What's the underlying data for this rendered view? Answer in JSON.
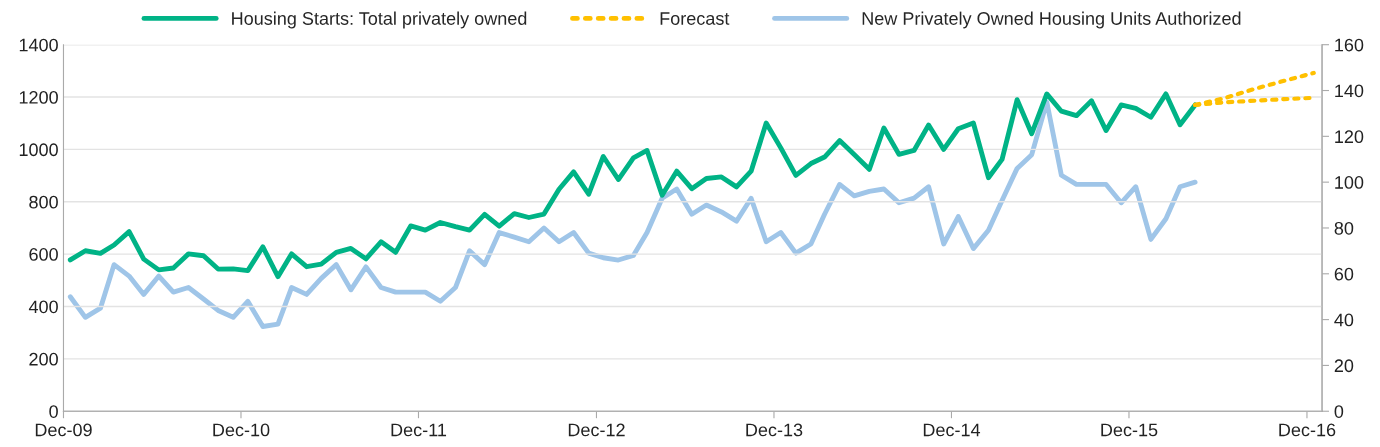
{
  "chart_data": {
    "type": "line",
    "legend": "top",
    "grid": "y",
    "marker": "none",
    "x": [
      "2009-12-15",
      "2010-01-15",
      "2010-02-15",
      "2010-03-15",
      "2010-04-15",
      "2010-05-15",
      "2010-06-15",
      "2010-07-15",
      "2010-08-15",
      "2010-09-15",
      "2010-10-15",
      "2010-11-15",
      "2010-12-15",
      "2011-01-15",
      "2011-02-15",
      "2011-03-15",
      "2011-04-15",
      "2011-05-15",
      "2011-06-15",
      "2011-07-15",
      "2011-08-15",
      "2011-09-15",
      "2011-10-15",
      "2011-11-15",
      "2011-12-15",
      "2012-01-15",
      "2012-02-15",
      "2012-03-15",
      "2012-04-15",
      "2012-05-15",
      "2012-06-15",
      "2012-07-15",
      "2012-08-15",
      "2012-09-15",
      "2012-10-15",
      "2012-11-15",
      "2012-12-15",
      "2013-01-15",
      "2013-02-15",
      "2013-03-15",
      "2013-04-15",
      "2013-05-15",
      "2013-06-15",
      "2013-07-15",
      "2013-08-15",
      "2013-09-15",
      "2013-10-15",
      "2013-11-15",
      "2013-12-15",
      "2014-01-15",
      "2014-02-15",
      "2014-03-15",
      "2014-04-15",
      "2014-05-15",
      "2014-06-15",
      "2014-07-15",
      "2014-08-15",
      "2014-09-15",
      "2014-10-15",
      "2014-11-15",
      "2014-12-15",
      "2015-01-15",
      "2015-02-15",
      "2015-03-15",
      "2015-04-15",
      "2015-05-15",
      "2015-06-15",
      "2015-07-15",
      "2015-08-15",
      "2015-09-15",
      "2015-10-15",
      "2015-11-15",
      "2015-12-15",
      "2016-01-15",
      "2016-02-15",
      "2016-03-15",
      "2016-04-15"
    ],
    "series": [
      {
        "name": "Housing Starts: Total privately owned",
        "color": "#00b386",
        "line_style": "solid",
        "values": [
          578,
          613,
          603,
          635,
          686,
          581,
          540,
          547,
          601,
          594,
          543,
          544,
          537,
          628,
          514,
          601,
          552,
          562,
          607,
          622,
          582,
          647,
          607,
          708,
          692,
          721,
          705,
          692,
          752,
          707,
          755,
          740,
          753,
          848,
          914,
          829,
          973,
          885,
          968,
          996,
          825,
          917,
          850,
          889,
          895,
          857,
          917,
          1101,
          1006,
          901,
          946,
          971,
          1034,
          981,
          924,
          1082,
          981,
          996,
          1093,
          1000,
          1079,
          1101,
          892,
          962,
          1190,
          1060,
          1212,
          1146,
          1129,
          1186,
          1072,
          1170,
          1157,
          1123,
          1212,
          1094,
          1170
        ]
      },
      {
        "name": "Forecast",
        "color": "#ffc000",
        "line_style": "dotted",
        "x": [
          "2016-04-15",
          "2016-06-15",
          "2016-08-15",
          "2016-10-15",
          "2016-12-15"
        ],
        "values": [
          1170,
          1196,
          1231,
          1262,
          1292
        ]
      },
      {
        "color": "#ffc000",
        "line_style": "dotted",
        "x": [
          "2016-04-15",
          "2016-06-15",
          "2016-08-15",
          "2016-10-15",
          "2016-12-15"
        ],
        "values": [
          1170,
          1180,
          1186,
          1192,
          1197
        ]
      },
      {
        "name": "New Privately Owned Housing Units Authorized",
        "color": "#9fc5e8",
        "line_style": "solid",
        "axis": "y2",
        "values": [
          50,
          41,
          45,
          64,
          59,
          51,
          59,
          52,
          54,
          49,
          44,
          41,
          48,
          37,
          38,
          54,
          51,
          58,
          64,
          53,
          63,
          54,
          52,
          52,
          52,
          48,
          54,
          70,
          64,
          78,
          76,
          74,
          80,
          74,
          78,
          69,
          67,
          66,
          68,
          78,
          93,
          97,
          86,
          90,
          87,
          83,
          93,
          74,
          78,
          69,
          73,
          86,
          99,
          94,
          96,
          97,
          91,
          93,
          98,
          73,
          85,
          71,
          79,
          92,
          106,
          112,
          135,
          103,
          99,
          99,
          99,
          91,
          98,
          75,
          84,
          98,
          100
        ]
      }
    ],
    "xlim": [
      "2009-12",
      "2017-01"
    ],
    "xticks": [
      {
        "value": "2009-12",
        "label": "Dec-09"
      },
      {
        "value": "2010-12",
        "label": "Dec-10"
      },
      {
        "value": "2011-12",
        "label": "Dec-11"
      },
      {
        "value": "2012-12",
        "label": "Dec-12"
      },
      {
        "value": "2013-12",
        "label": "Dec-13"
      },
      {
        "value": "2014-12",
        "label": "Dec-14"
      },
      {
        "value": "2015-12",
        "label": "Dec-15"
      },
      {
        "value": "2016-12",
        "label": "Dec-16"
      }
    ],
    "ylim": [
      0,
      1400
    ],
    "yticks": [
      0,
      200,
      400,
      600,
      800,
      1000,
      1200,
      1400
    ],
    "y2lim": [
      0,
      160
    ],
    "y2ticks": [
      0,
      20,
      40,
      60,
      80,
      100,
      120,
      140,
      160
    ]
  }
}
